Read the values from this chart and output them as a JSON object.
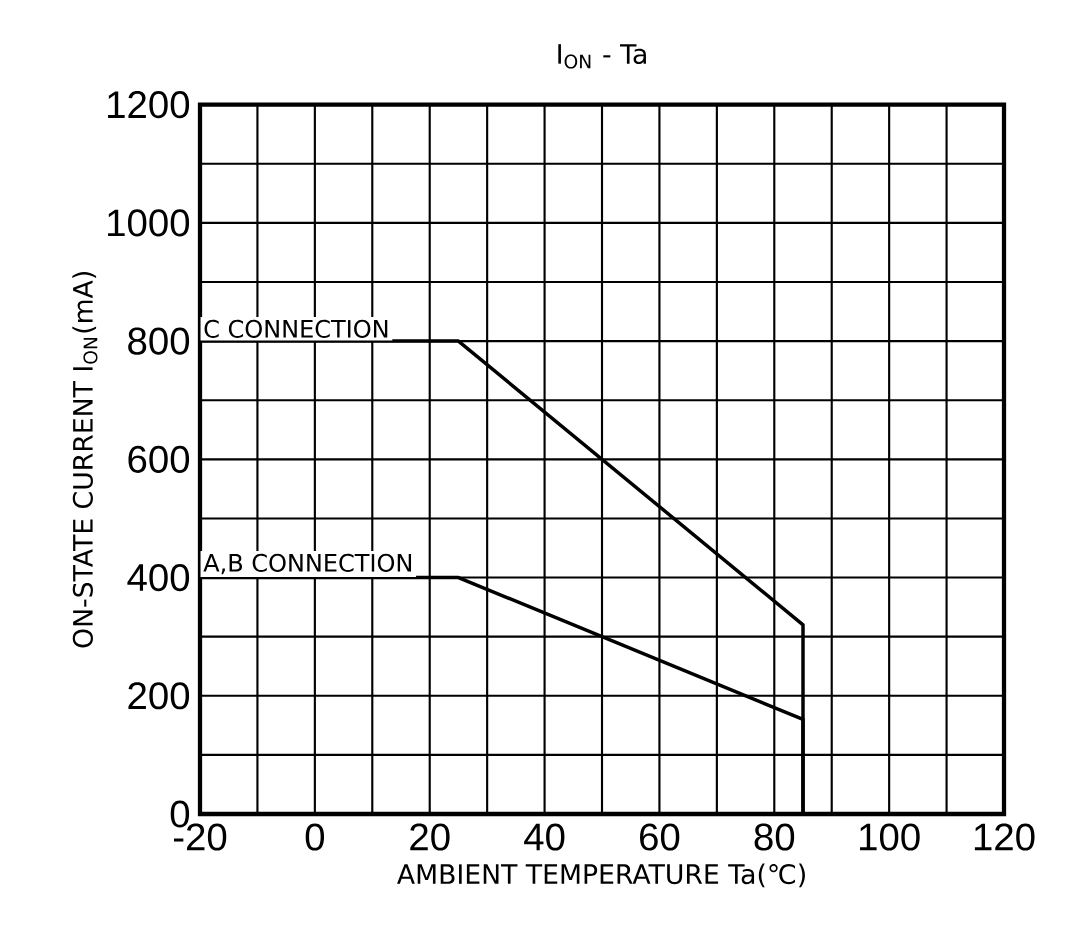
{
  "chart_data": {
    "type": "line",
    "title": "I$_{ON}$ - Ta",
    "xlabel": "AMBIENT TEMPERATURE  Ta(℃)",
    "ylabel": "ON-STATE CURRENT I$_{ON}$(mA)",
    "xlim": [
      -20,
      120
    ],
    "ylim": [
      0,
      1200
    ],
    "xticks": [
      -20,
      0,
      20,
      40,
      60,
      80,
      100,
      120
    ],
    "yticks": [
      0,
      200,
      400,
      600,
      800,
      1000,
      1200
    ],
    "grid": true,
    "legend": false,
    "marker": "none",
    "line_style": "solid",
    "series": [
      {
        "name": "C CONNECTION",
        "color": "#000000",
        "x": [
          -20,
          25,
          85,
          85
        ],
        "values": [
          800,
          800,
          320,
          0
        ]
      },
      {
        "name": "A,B CONNECTION",
        "color": "#000000",
        "x": [
          -20,
          25,
          85,
          85
        ],
        "values": [
          400,
          400,
          160,
          0
        ]
      }
    ]
  }
}
